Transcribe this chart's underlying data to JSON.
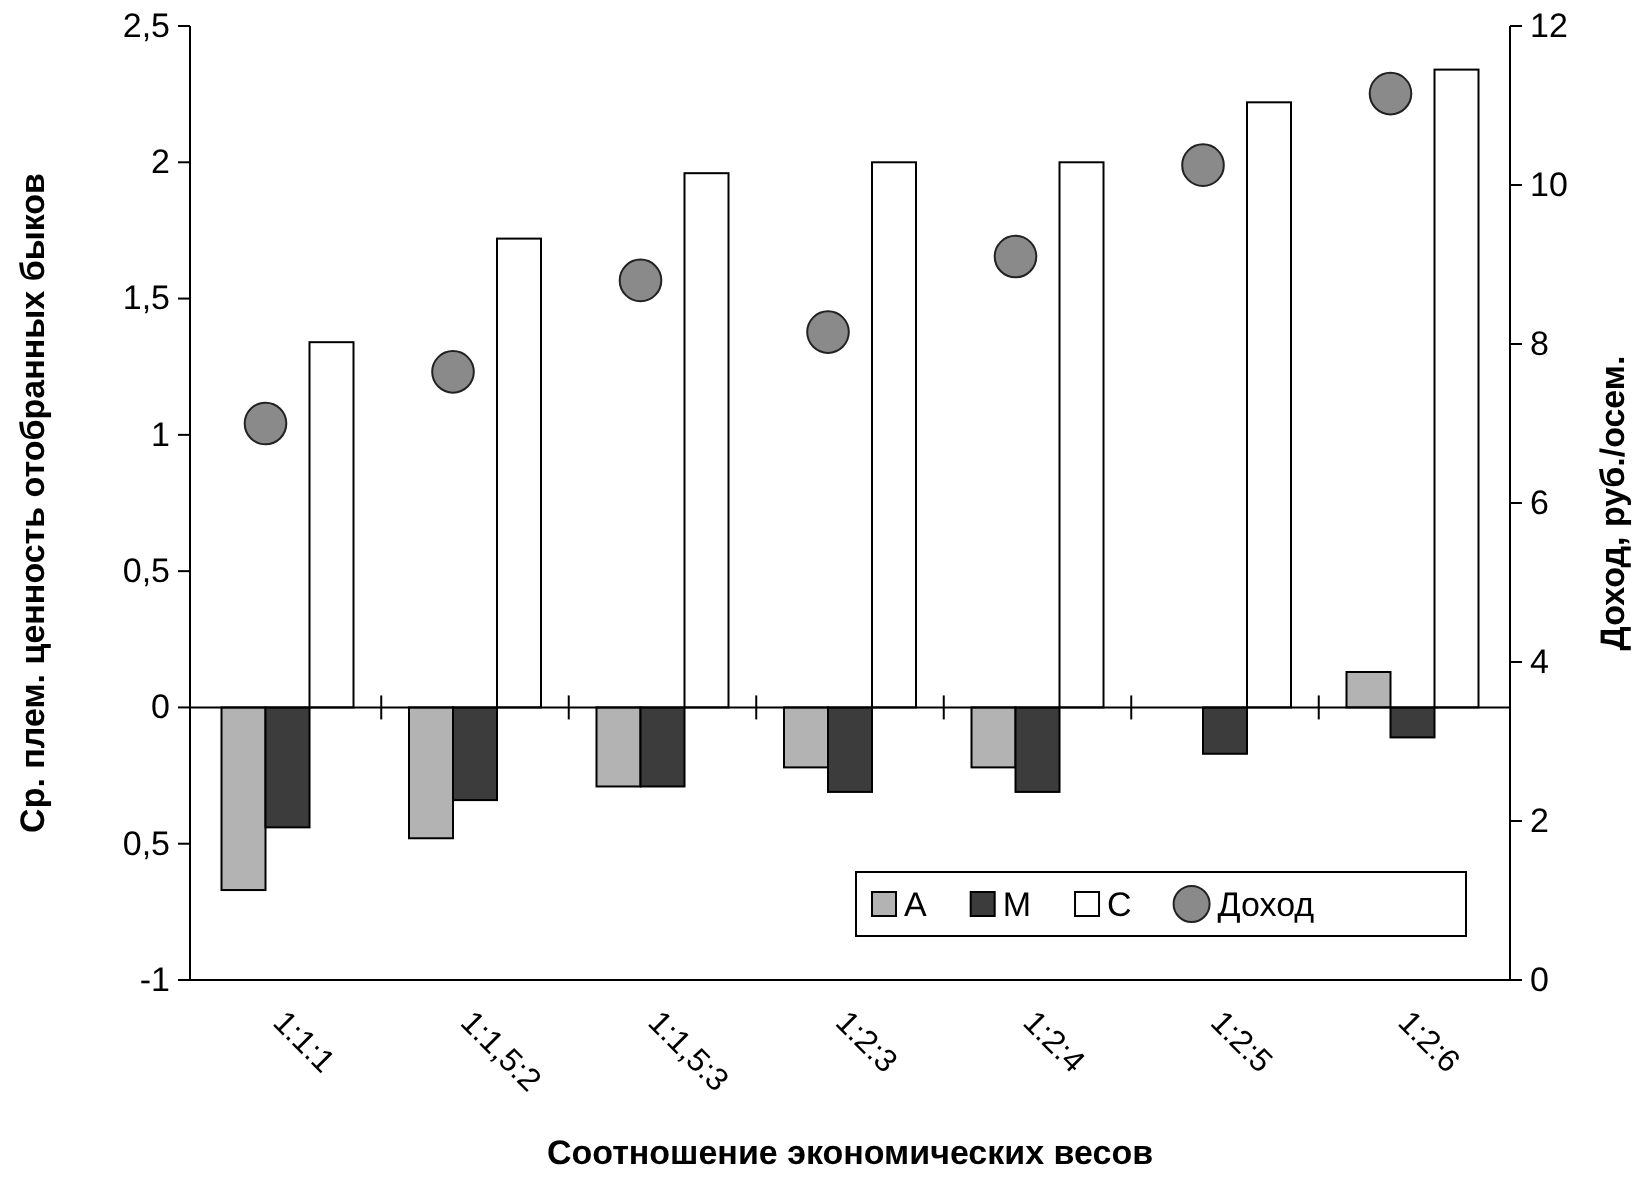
{
  "chart_data": {
    "type": "bar",
    "xlabel": "Соотношение экономических весов",
    "ylabel": "Ср. плем. ценность отобранных быков",
    "y2label": "Доход, руб./осем.",
    "categories": [
      "1:1:1",
      "1:1,5:2",
      "1:1,5:3",
      "1:2:3",
      "1:2:4",
      "1:2:5",
      "1:2:6"
    ],
    "series": [
      {
        "name": "А",
        "color": "#b3b3b3",
        "values": [
          -0.67,
          -0.48,
          -0.29,
          -0.22,
          -0.22,
          0,
          0.13
        ]
      },
      {
        "name": "М",
        "color": "#3c3c3c",
        "values": [
          -0.44,
          -0.34,
          -0.29,
          -0.31,
          -0.31,
          -0.17,
          -0.11
        ]
      },
      {
        "name": "С",
        "color": "#ffffff",
        "values": [
          1.34,
          1.72,
          1.96,
          2.0,
          2.0,
          2.22,
          2.34
        ]
      },
      {
        "name": "Доход",
        "type": "scatter",
        "axis": "y2",
        "color": "#8a8a8a",
        "values": [
          7.0,
          7.65,
          8.8,
          8.15,
          9.1,
          10.25,
          11.15
        ]
      }
    ],
    "ylim": [
      -1,
      2.5
    ],
    "yticks": [
      -1,
      {
        "value": -0.5,
        "label": "0,5"
      },
      0,
      {
        "value": 0.5,
        "label": "0,5"
      },
      1,
      {
        "value": 1.5,
        "label": "1,5"
      },
      2,
      {
        "value": 2.5,
        "label": "2,5"
      }
    ],
    "y2lim": [
      0,
      12
    ],
    "y2ticks": [
      0,
      2,
      4,
      6,
      8,
      10,
      12
    ],
    "marker": "circle",
    "legend": "bottom right"
  }
}
